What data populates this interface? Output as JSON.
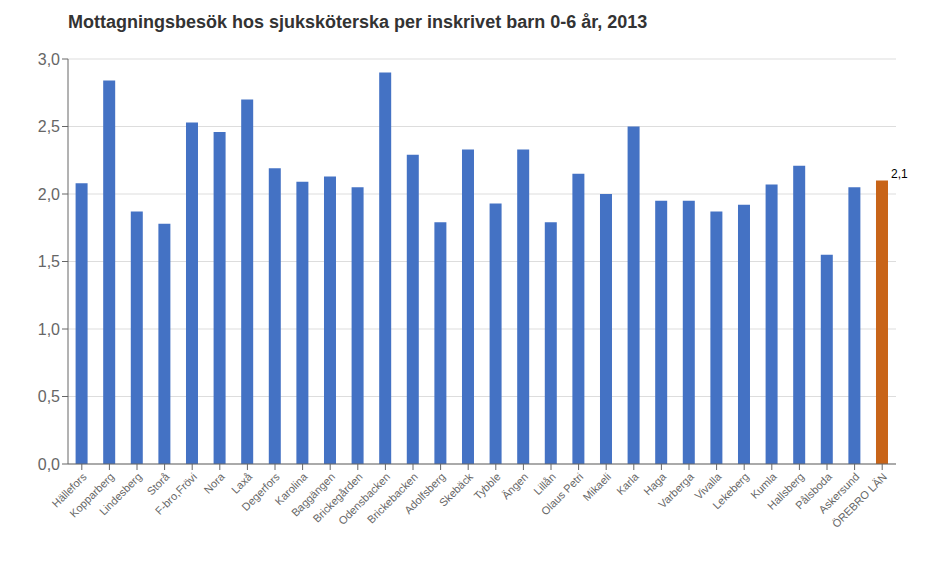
{
  "chart_data": {
    "type": "bar",
    "title": "Mottagningsbesök hos sjuksköterska per inskrivet barn 0-6 år, 2013",
    "categories": [
      "Hällefors",
      "Kopparberg",
      "Lindesberg",
      "Storå",
      "F-bro,Frövi",
      "Nora",
      "Laxå",
      "Degerfors",
      "Karolina",
      "Baggängen",
      "Brickegården",
      "Odensbacken",
      "Brickebacken",
      "Adolfsberg",
      "Skebäck",
      "Tybble",
      "Ängen",
      "Lillån",
      "Olaus Petri",
      "Mikaeli",
      "Karla",
      "Haga",
      "Varberga",
      "Vivalla",
      "Lekeberg",
      "Kumla",
      "Hallsberg",
      "Pålsboda",
      "Askersund",
      "ÖREBRO LÄN"
    ],
    "values": [
      2.08,
      2.84,
      1.87,
      1.78,
      2.53,
      2.46,
      2.7,
      2.19,
      2.09,
      2.13,
      2.05,
      2.9,
      2.29,
      1.79,
      2.33,
      1.93,
      2.33,
      1.79,
      2.15,
      2.0,
      2.5,
      1.95,
      1.95,
      1.87,
      1.92,
      2.07,
      2.21,
      1.55,
      2.05,
      2.1
    ],
    "colors": [
      "#4472c4",
      "#4472c4",
      "#4472c4",
      "#4472c4",
      "#4472c4",
      "#4472c4",
      "#4472c4",
      "#4472c4",
      "#4472c4",
      "#4472c4",
      "#4472c4",
      "#4472c4",
      "#4472c4",
      "#4472c4",
      "#4472c4",
      "#4472c4",
      "#4472c4",
      "#4472c4",
      "#4472c4",
      "#4472c4",
      "#4472c4",
      "#4472c4",
      "#4472c4",
      "#4472c4",
      "#4472c4",
      "#4472c4",
      "#4472c4",
      "#4472c4",
      "#4472c4",
      "#c86418"
    ],
    "ylim": [
      0.0,
      3.0
    ],
    "yticks": [
      {
        "value": 0.0,
        "label": "0,0"
      },
      {
        "value": 0.5,
        "label": "0,5"
      },
      {
        "value": 1.0,
        "label": "1,0"
      },
      {
        "value": 1.5,
        "label": "1,5"
      },
      {
        "value": 2.0,
        "label": "2,0"
      },
      {
        "value": 2.5,
        "label": "2,5"
      },
      {
        "value": 3.0,
        "label": "3,0"
      }
    ],
    "grid": true,
    "annotations": [
      {
        "category": "ÖREBRO LÄN",
        "text": "2,1"
      }
    ]
  }
}
